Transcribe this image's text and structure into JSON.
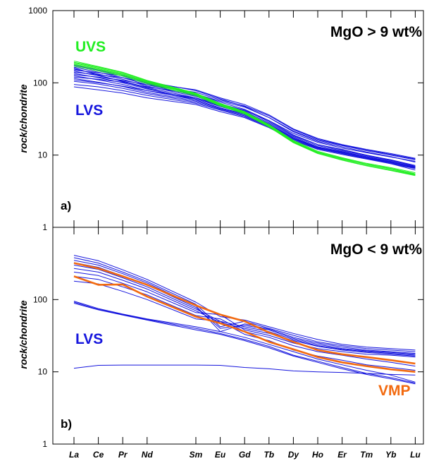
{
  "chart_data": [
    {
      "type": "line",
      "panel_label": "a)",
      "title": "MgO > 9 wt%",
      "ylabel": "rock/chondrite",
      "yscale": "log",
      "ylim": [
        1,
        1000
      ],
      "y_tick_labels": [
        "1",
        "10",
        "100",
        "1000"
      ],
      "categories": [
        "La",
        "Ce",
        "Pr",
        "Nd",
        "Sm",
        "Eu",
        "Gd",
        "Tb",
        "Dy",
        "Ho",
        "Er",
        "Tm",
        "Yb",
        "Lu"
      ],
      "category_positions": [
        0,
        1,
        2,
        3,
        5,
        6,
        7,
        8,
        9,
        10,
        11,
        12,
        13,
        14
      ],
      "annotations": [
        {
          "text": "UVS",
          "color": "#22ee22"
        },
        {
          "text": "LVS",
          "color": "#1515dd"
        }
      ],
      "series": [
        {
          "group": "LVS",
          "color": "#1515dd",
          "values": [
            175,
            150,
            124,
            98,
            70,
            54,
            43,
            30,
            19,
            14,
            12,
            10,
            8.5,
            7.0
          ]
        },
        {
          "group": "LVS",
          "color": "#1515dd",
          "values": [
            165,
            140,
            118,
            94,
            67,
            51,
            42,
            29,
            18.5,
            14,
            11.8,
            10,
            8.6,
            7.2
          ]
        },
        {
          "group": "LVS",
          "color": "#1515dd",
          "values": [
            155,
            132,
            112,
            90,
            65,
            50,
            40,
            28,
            18,
            13.5,
            11.5,
            9.8,
            8.4,
            7.0
          ]
        },
        {
          "group": "LVS",
          "color": "#1515dd",
          "values": [
            145,
            125,
            106,
            86,
            62,
            48,
            39,
            27,
            17.5,
            13,
            11.2,
            9.5,
            8.2,
            6.8
          ]
        },
        {
          "group": "LVS",
          "color": "#1515dd",
          "values": [
            135,
            118,
            100,
            82,
            60,
            47,
            38,
            27,
            17,
            13,
            11,
            9.5,
            8.0,
            6.7
          ]
        },
        {
          "group": "LVS",
          "color": "#1515dd",
          "values": [
            125,
            110,
            95,
            78,
            58,
            45,
            37,
            26,
            17,
            12.8,
            11,
            9.4,
            8.1,
            6.9
          ]
        },
        {
          "group": "LVS",
          "color": "#1515dd",
          "values": [
            115,
            102,
            89,
            74,
            56,
            44,
            36,
            25.5,
            16.5,
            12.5,
            10.8,
            9.2,
            8.0,
            6.8
          ]
        },
        {
          "group": "LVS",
          "color": "#1515dd",
          "values": [
            105,
            96,
            84,
            71,
            54,
            43,
            35,
            25,
            16.5,
            12.5,
            10.5,
            9.0,
            7.8,
            6.6
          ]
        },
        {
          "group": "LVS",
          "color": "#1515dd",
          "values": [
            95,
            88,
            78,
            67,
            52,
            42,
            34,
            24.5,
            16,
            12.3,
            10.5,
            9.0,
            7.9,
            6.8
          ]
        },
        {
          "group": "LVS",
          "color": "#1515dd",
          "values": [
            88,
            80,
            72,
            62,
            50,
            40,
            33,
            24,
            16,
            12,
            10.2,
            8.8,
            7.6,
            6.5
          ]
        },
        {
          "group": "LVS",
          "color": "#1515dd",
          "values": [
            150,
            138,
            125,
            104,
            78,
            60,
            47,
            33,
            21,
            15.5,
            13,
            11,
            9.5,
            8.0
          ]
        },
        {
          "group": "LVS",
          "color": "#1515dd",
          "values": [
            140,
            130,
            118,
            100,
            80,
            62,
            50,
            36,
            23,
            17,
            14,
            12,
            10.5,
            9.0
          ]
        },
        {
          "group": "LVS",
          "color": "#1515dd",
          "values": [
            120,
            112,
            102,
            88,
            70,
            56,
            46,
            33,
            21.5,
            16,
            13.5,
            11.5,
            10,
            8.6
          ]
        },
        {
          "group": "LVS",
          "color": "#1515dd",
          "values": [
            110,
            100,
            90,
            78,
            62,
            50,
            41,
            30,
            20,
            15,
            12.5,
            10.8,
            9.4,
            8.2
          ]
        },
        {
          "group": "LVS",
          "color": "#1515dd",
          "values": [
            130,
            120,
            108,
            94,
            74,
            58,
            48,
            35,
            22.5,
            16.5,
            13.8,
            11.8,
            10.2,
            8.8
          ]
        },
        {
          "group": "LVS",
          "color": "#1515dd",
          "values": [
            160,
            128,
            104,
            84,
            58,
            45,
            37,
            26,
            17,
            12.5,
            10.6,
            9.0,
            7.6,
            6.2
          ]
        },
        {
          "group": "UVS",
          "color": "#22ee22",
          "values": [
            200,
            168,
            140,
            108,
            72,
            52,
            40,
            26,
            15.5,
            11,
            9.0,
            7.5,
            6.5,
            5.5
          ]
        },
        {
          "group": "UVS",
          "color": "#22ee22",
          "values": [
            188,
            160,
            134,
            104,
            70,
            50,
            39,
            25.5,
            15.2,
            10.8,
            8.8,
            7.4,
            6.4,
            5.4
          ]
        },
        {
          "group": "UVS",
          "color": "#22ee22",
          "values": [
            178,
            152,
            128,
            100,
            68,
            49,
            38,
            25,
            15,
            10.6,
            8.6,
            7.2,
            6.2,
            5.3
          ]
        },
        {
          "group": "UVS",
          "color": "#22ee22",
          "values": [
            170,
            146,
            124,
            97,
            66,
            48,
            37,
            24.5,
            14.8,
            10.5,
            8.5,
            7.1,
            6.1,
            5.2
          ]
        },
        {
          "group": "UVS",
          "color": "#22ee22",
          "values": [
            192,
            165,
            138,
            106,
            71,
            51,
            39.5,
            26.5,
            16,
            11.3,
            9.2,
            7.7,
            6.7,
            5.7
          ]
        },
        {
          "group": "UVS",
          "color": "#22ee22",
          "values": [
            182,
            156,
            131,
            102,
            69,
            50,
            38.5,
            25.8,
            15.6,
            11,
            8.9,
            7.5,
            6.5,
            5.5
          ]
        }
      ]
    },
    {
      "type": "line",
      "panel_label": "b)",
      "title": "MgO < 9 wt%",
      "ylabel": "rock/chondrite",
      "yscale": "log",
      "ylim": [
        1,
        1000
      ],
      "y_tick_labels": [
        "1",
        "10",
        "100"
      ],
      "categories": [
        "La",
        "Ce",
        "Pr",
        "Nd",
        "Sm",
        "Eu",
        "Gd",
        "Tb",
        "Dy",
        "Ho",
        "Er",
        "Tm",
        "Yb",
        "Lu"
      ],
      "category_positions": [
        0,
        1,
        2,
        3,
        5,
        6,
        7,
        8,
        9,
        10,
        11,
        12,
        13,
        14
      ],
      "annotations": [
        {
          "text": "LVS",
          "color": "#1515dd"
        },
        {
          "text": "VMP",
          "color": "#f26a10"
        }
      ],
      "series": [
        {
          "group": "LVS",
          "color": "#1515dd",
          "values": [
            410,
            345,
            258,
            190,
            92,
            58,
            52,
            42,
            34,
            28,
            24,
            22,
            21,
            20
          ]
        },
        {
          "group": "LVS",
          "color": "#1515dd",
          "values": [
            380,
            320,
            240,
            178,
            86,
            42,
            50,
            40,
            32,
            26,
            23,
            21,
            20,
            19
          ]
        },
        {
          "group": "LVS",
          "color": "#1515dd",
          "values": [
            350,
            300,
            228,
            170,
            82,
            36,
            46,
            39,
            30,
            25,
            22,
            20,
            19,
            18
          ]
        },
        {
          "group": "LVS",
          "color": "#1515dd",
          "values": [
            325,
            280,
            212,
            160,
            78,
            40,
            44,
            38,
            29,
            24,
            21,
            19.5,
            18.5,
            17.5
          ]
        },
        {
          "group": "LVS",
          "color": "#1515dd",
          "values": [
            300,
            262,
            200,
            150,
            74,
            50,
            42,
            36,
            28,
            23,
            20.5,
            19,
            18,
            17
          ]
        },
        {
          "group": "LVS",
          "color": "#1515dd",
          "values": [
            270,
            240,
            185,
            140,
            70,
            48,
            40,
            34,
            27,
            22.5,
            20,
            18.5,
            17.5,
            16.5
          ]
        },
        {
          "group": "LVS",
          "color": "#1515dd",
          "values": [
            240,
            215,
            168,
            128,
            66,
            62,
            38,
            32,
            25,
            21,
            19,
            17.5,
            17,
            16
          ]
        },
        {
          "group": "LVS",
          "color": "#1515dd",
          "values": [
            210,
            190,
            150,
            116,
            60,
            54,
            36,
            30,
            23,
            19,
            17,
            15,
            13.5,
            12
          ]
        },
        {
          "group": "LVS",
          "color": "#1515dd",
          "values": [
            180,
            165,
            130,
            100,
            54,
            50,
            33,
            27,
            20,
            16.5,
            14.5,
            12.5,
            11.5,
            10.5
          ]
        },
        {
          "group": "LVS",
          "color": "#1515dd",
          "values": [
            95,
            75,
            63,
            54,
            42,
            36,
            30,
            24,
            19,
            15,
            12.5,
            10.5,
            9.0,
            7.2
          ]
        },
        {
          "group": "LVS",
          "color": "#1515dd",
          "values": [
            92,
            73,
            62,
            53,
            40,
            34,
            28,
            22.5,
            17,
            14,
            11.5,
            9.5,
            8.3,
            7.0
          ]
        },
        {
          "group": "LVS",
          "color": "#1515dd",
          "values": [
            89,
            72,
            61,
            52,
            38,
            33,
            27,
            21.5,
            16.5,
            13.5,
            11,
            9.2,
            8.0,
            6.8
          ]
        },
        {
          "group": "LVS",
          "color": "#1515dd",
          "values": [
            11.2,
            12.3,
            12.4,
            12.4,
            12.4,
            12.3,
            11.5,
            11.0,
            10.3,
            10.0,
            9.8,
            9.5,
            9.2,
            9.0
          ]
        },
        {
          "group": "VMP",
          "color": "#f26a10",
          "values": [
            320,
            270,
            210,
            160,
            83,
            62,
            50,
            35,
            26,
            20,
            17.5,
            16,
            14.5,
            13
          ]
        },
        {
          "group": "VMP",
          "color": "#f26a10",
          "values": [
            210,
            160,
            162,
            110,
            58,
            47,
            36,
            26,
            20.5,
            16,
            13.5,
            12,
            10.8,
            10
          ]
        }
      ]
    }
  ]
}
